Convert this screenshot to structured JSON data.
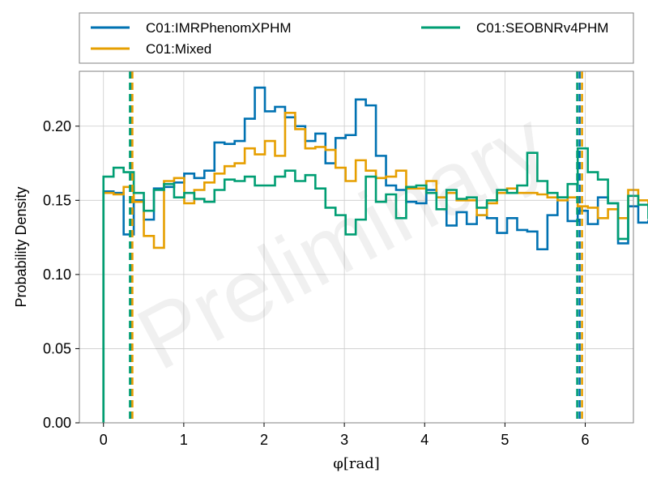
{
  "chart_data": {
    "type": "line",
    "xlabel": "φ[rad]",
    "ylabel": "Probability Density",
    "xlim": [
      -0.3,
      6.6
    ],
    "ylim": [
      0,
      0.237
    ],
    "xticks": [
      0,
      1,
      2,
      3,
      4,
      5,
      6
    ],
    "yticks": [
      0.0,
      0.05,
      0.1,
      0.15,
      0.2
    ],
    "ytick_labels": [
      "0.00",
      "0.05",
      "0.10",
      "0.15",
      "0.20"
    ],
    "grid": true,
    "watermark": "Preliminary",
    "legend_position": "top, outside plot, two columns",
    "bin_width": 0.125664,
    "series": [
      {
        "name": "C01:IMRPhenomXPHM",
        "color": "#0072b2",
        "values": [
          0.156,
          0.155,
          0.127,
          0.15,
          0.137,
          0.158,
          0.159,
          0.162,
          0.168,
          0.165,
          0.17,
          0.189,
          0.188,
          0.19,
          0.205,
          0.226,
          0.21,
          0.213,
          0.206,
          0.2,
          0.19,
          0.195,
          0.175,
          0.192,
          0.194,
          0.218,
          0.214,
          0.18,
          0.16,
          0.157,
          0.149,
          0.148,
          0.157,
          0.152,
          0.133,
          0.142,
          0.134,
          0.14,
          0.138,
          0.128,
          0.138,
          0.13,
          0.129,
          0.117,
          0.14,
          0.152,
          0.136,
          0.143,
          0.134,
          0.152,
          0.148,
          0.121,
          0.146,
          0.135,
          0.136,
          0.129,
          0.132,
          0.13,
          0.131,
          0.131
        ],
        "vlines": [
          0.34,
          5.93
        ]
      },
      {
        "name": "C01:Mixed",
        "color": "#e69f00",
        "values": [
          0.155,
          0.154,
          0.159,
          0.149,
          0.126,
          0.118,
          0.163,
          0.165,
          0.148,
          0.157,
          0.162,
          0.168,
          0.173,
          0.175,
          0.185,
          0.181,
          0.19,
          0.18,
          0.209,
          0.198,
          0.185,
          0.186,
          0.184,
          0.172,
          0.163,
          0.177,
          0.17,
          0.165,
          0.166,
          0.17,
          0.158,
          0.158,
          0.163,
          0.152,
          0.155,
          0.15,
          0.15,
          0.14,
          0.148,
          0.155,
          0.158,
          0.155,
          0.155,
          0.154,
          0.152,
          0.15,
          0.152,
          0.146,
          0.145,
          0.138,
          0.144,
          0.138,
          0.157,
          0.15,
          0.146,
          0.148,
          0.145,
          0.145,
          0.137,
          0.137
        ],
        "vlines": [
          0.36,
          5.96
        ]
      },
      {
        "name": "C01:SEOBNRv4PHM",
        "color": "#009e73",
        "values": [
          0.166,
          0.172,
          0.169,
          0.155,
          0.143,
          0.157,
          0.161,
          0.152,
          0.155,
          0.151,
          0.149,
          0.157,
          0.164,
          0.163,
          0.166,
          0.16,
          0.16,
          0.166,
          0.17,
          0.163,
          0.167,
          0.158,
          0.145,
          0.14,
          0.127,
          0.137,
          0.166,
          0.149,
          0.154,
          0.138,
          0.159,
          0.16,
          0.155,
          0.144,
          0.157,
          0.151,
          0.152,
          0.145,
          0.15,
          0.157,
          0.155,
          0.16,
          0.182,
          0.163,
          0.155,
          0.152,
          0.161,
          0.185,
          0.169,
          0.164,
          0.148,
          0.124,
          0.153,
          0.147,
          0.138,
          0.145,
          0.161,
          0.162,
          0.158,
          0.155
        ],
        "vlines": [
          0.33,
          5.9
        ]
      }
    ]
  }
}
